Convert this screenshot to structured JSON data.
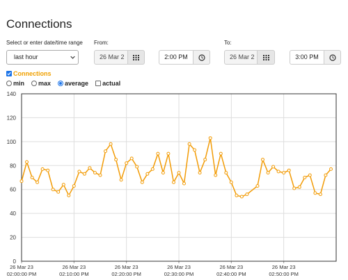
{
  "page": {
    "title": "Connections"
  },
  "range": {
    "label": "Select or enter date/time range",
    "selected": "last hour"
  },
  "from": {
    "label": "From:",
    "date": "26 Mar 2",
    "time": "2:00 PM"
  },
  "to": {
    "label": "To:",
    "date": "26 Mar 2",
    "time": "3:00 PM"
  },
  "series_toggle": {
    "label": "Connections",
    "checked": true
  },
  "options": [
    {
      "label": "min",
      "kind": "radio",
      "checked": false
    },
    {
      "label": "max",
      "kind": "radio",
      "checked": false
    },
    {
      "label": "average",
      "kind": "radio",
      "checked": true
    },
    {
      "label": "actual",
      "kind": "checkbox",
      "checked": false
    }
  ],
  "icons": {
    "calendar": "calendar-grid-icon",
    "clock": "clock-icon",
    "dropdown": "chevron-down-icon"
  },
  "colors": {
    "series": "#f29b05",
    "checkbox_accent": "#1a73e8",
    "grid": "#dddddd"
  },
  "chart_data": {
    "type": "line",
    "title": "",
    "xlabel": "",
    "ylabel": "",
    "ylim": [
      0,
      140
    ],
    "yticks": [
      "0",
      "20",
      "40",
      "60",
      "80",
      "100",
      "120",
      "140"
    ],
    "xlim": [
      "26 Mar 23 02:00:00 PM",
      "26 Mar 23 02:59:00 PM"
    ],
    "xticks": [
      {
        "date": "26 Mar 23",
        "time": "02:00:00 PM"
      },
      {
        "date": "26 Mar 23",
        "time": "02:10:00 PM"
      },
      {
        "date": "26 Mar 23",
        "time": "02:20:00 PM"
      },
      {
        "date": "26 Mar 23",
        "time": "02:30:00 PM"
      },
      {
        "date": "26 Mar 23",
        "time": "02:40:00 PM"
      },
      {
        "date": "26 Mar 23",
        "time": "02:50:00 PM"
      }
    ],
    "grid": true,
    "series": [
      {
        "name": "Connections",
        "color": "#f29b05",
        "x": [
          "02:00 PM",
          "02:01 PM",
          "02:02 PM",
          "02:03 PM",
          "02:04 PM",
          "02:05 PM",
          "02:06 PM",
          "02:07 PM",
          "02:08 PM",
          "02:09 PM",
          "02:10 PM",
          "02:11 PM",
          "02:12 PM",
          "02:13 PM",
          "02:14 PM",
          "02:15 PM",
          "02:16 PM",
          "02:17 PM",
          "02:18 PM",
          "02:19 PM",
          "02:20 PM",
          "02:21 PM",
          "02:22 PM",
          "02:23 PM",
          "02:24 PM",
          "02:25 PM",
          "02:26 PM",
          "02:27 PM",
          "02:28 PM",
          "02:29 PM",
          "02:30 PM",
          "02:31 PM",
          "02:32 PM",
          "02:33 PM",
          "02:34 PM",
          "02:35 PM",
          "02:36 PM",
          "02:37 PM",
          "02:38 PM",
          "02:39 PM",
          "02:40 PM",
          "02:41 PM",
          "02:42 PM",
          "02:43 PM",
          "02:45 PM",
          "02:46 PM",
          "02:47 PM",
          "02:48 PM",
          "02:49 PM",
          "02:50 PM",
          "02:51 PM",
          "02:52 PM",
          "02:53 PM",
          "02:54 PM",
          "02:55 PM",
          "02:56 PM",
          "02:57 PM",
          "02:58 PM",
          "02:59 PM"
        ],
        "values": [
          67,
          83,
          70,
          66,
          77,
          76,
          60,
          58,
          64,
          55,
          63,
          75,
          73,
          78,
          74,
          72,
          92,
          98,
          85,
          68,
          82,
          86,
          79,
          66,
          73,
          77,
          90,
          74,
          90,
          66,
          74,
          65,
          98,
          93,
          74,
          85,
          103,
          72,
          90,
          74,
          66,
          55,
          54,
          56,
          63,
          85,
          74,
          79,
          75,
          74,
          76,
          61,
          62,
          70,
          72,
          57,
          56,
          72,
          77
        ]
      }
    ]
  }
}
